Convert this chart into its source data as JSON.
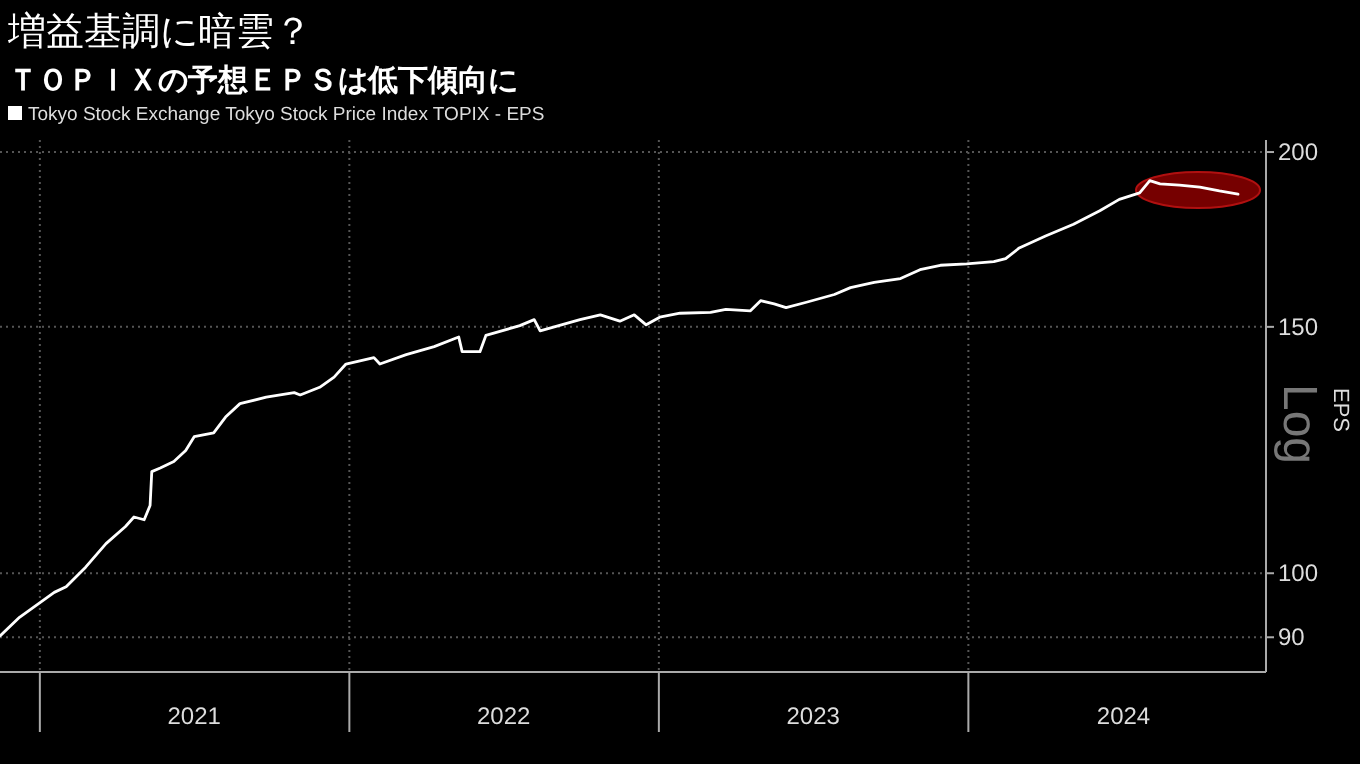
{
  "chart_data": {
    "type": "line",
    "title": "増益基調に暗雲？",
    "subtitle": "ＴＯＰＩＸの予想ＥＰＳは低下傾向に",
    "ylabel": "EPS",
    "annotations": [
      "Log"
    ],
    "log": "y",
    "grid": true,
    "legend": "top left",
    "marker": "none",
    "line_style": "solid",
    "xlim": [
      "2020-11-15",
      "2024-12-17"
    ],
    "ylim": [
      85,
      204
    ],
    "yticks": [
      90,
      100,
      150,
      200
    ],
    "xticks": [
      {
        "value": "2021-01-01",
        "label": null
      },
      {
        "value": "2021-07-02",
        "label": "2021"
      },
      {
        "value": "2022-01-01",
        "label": null
      },
      {
        "value": "2022-07-02",
        "label": "2022"
      },
      {
        "value": "2023-01-01",
        "label": null
      },
      {
        "value": "2023-07-02",
        "label": "2023"
      },
      {
        "value": "2024-01-01",
        "label": null
      },
      {
        "value": "2024-07-02",
        "label": "2024"
      }
    ],
    "series": [
      {
        "name": "Tokyo Stock Exchange Tokyo Stock Price Index TOPIX - EPS",
        "color": "#ffffff",
        "x": [
          "2020-11-15",
          "2020-12-08",
          "2021-01-18",
          "2021-02-01",
          "2021-02-24",
          "2021-03-20",
          "2021-04-12",
          "2021-04-22",
          "2021-05-04",
          "2021-05-11",
          "2021-05-13",
          "2021-05-23",
          "2021-06-08",
          "2021-06-22",
          "2021-07-02",
          "2021-07-25",
          "2021-08-08",
          "2021-08-25",
          "2021-09-25",
          "2021-10-28",
          "2021-11-04",
          "2021-11-27",
          "2021-12-14",
          "2021-12-28",
          "2022-01-30",
          "2022-02-06",
          "2022-03-09",
          "2022-04-11",
          "2022-05-10",
          "2022-05-14",
          "2022-06-04",
          "2022-06-11",
          "2022-07-21",
          "2022-08-07",
          "2022-08-14",
          "2022-09-30",
          "2022-10-24",
          "2022-11-16",
          "2022-12-03",
          "2022-12-17",
          "2023-01-02",
          "2023-01-26",
          "2023-03-03",
          "2023-03-21",
          "2023-04-19",
          "2023-05-01",
          "2023-05-17",
          "2023-05-31",
          "2023-06-24",
          "2023-07-27",
          "2023-08-15",
          "2023-09-12",
          "2023-10-13",
          "2023-11-05",
          "2023-11-29",
          "2023-12-30",
          "2024-01-31",
          "2024-02-14",
          "2024-03-01",
          "2024-04-01",
          "2024-05-04",
          "2024-06-04",
          "2024-06-27",
          "2024-07-21",
          "2024-08-02",
          "2024-08-14",
          "2024-09-06",
          "2024-09-30",
          "2024-10-23",
          "2024-11-14"
        ],
        "values": [
          90.2,
          93.0,
          96.9,
          97.8,
          101,
          105,
          108,
          109.7,
          109.2,
          111.8,
          118.2,
          118.9,
          120.2,
          122.4,
          125.2,
          126.0,
          129.3,
          132.2,
          133.6,
          134.6,
          134.1,
          135.8,
          138.1,
          141.1,
          142.6,
          141.1,
          143.3,
          145.2,
          147.5,
          144,
          144,
          147.9,
          150.3,
          151.8,
          149.0,
          151.8,
          153.0,
          151.4,
          153.0,
          150.5,
          152.4,
          153.4,
          153.6,
          154.4,
          154.0,
          156.6,
          155.8,
          154.8,
          156.2,
          158.2,
          160.0,
          161.4,
          162.4,
          164.8,
          166.0,
          166.4,
          167.0,
          167.8,
          170.8,
          174.2,
          177.6,
          181.6,
          185.0,
          187.0,
          190.8,
          189.8,
          189.4,
          188.8,
          187.6,
          186.6
        ]
      }
    ]
  }
}
